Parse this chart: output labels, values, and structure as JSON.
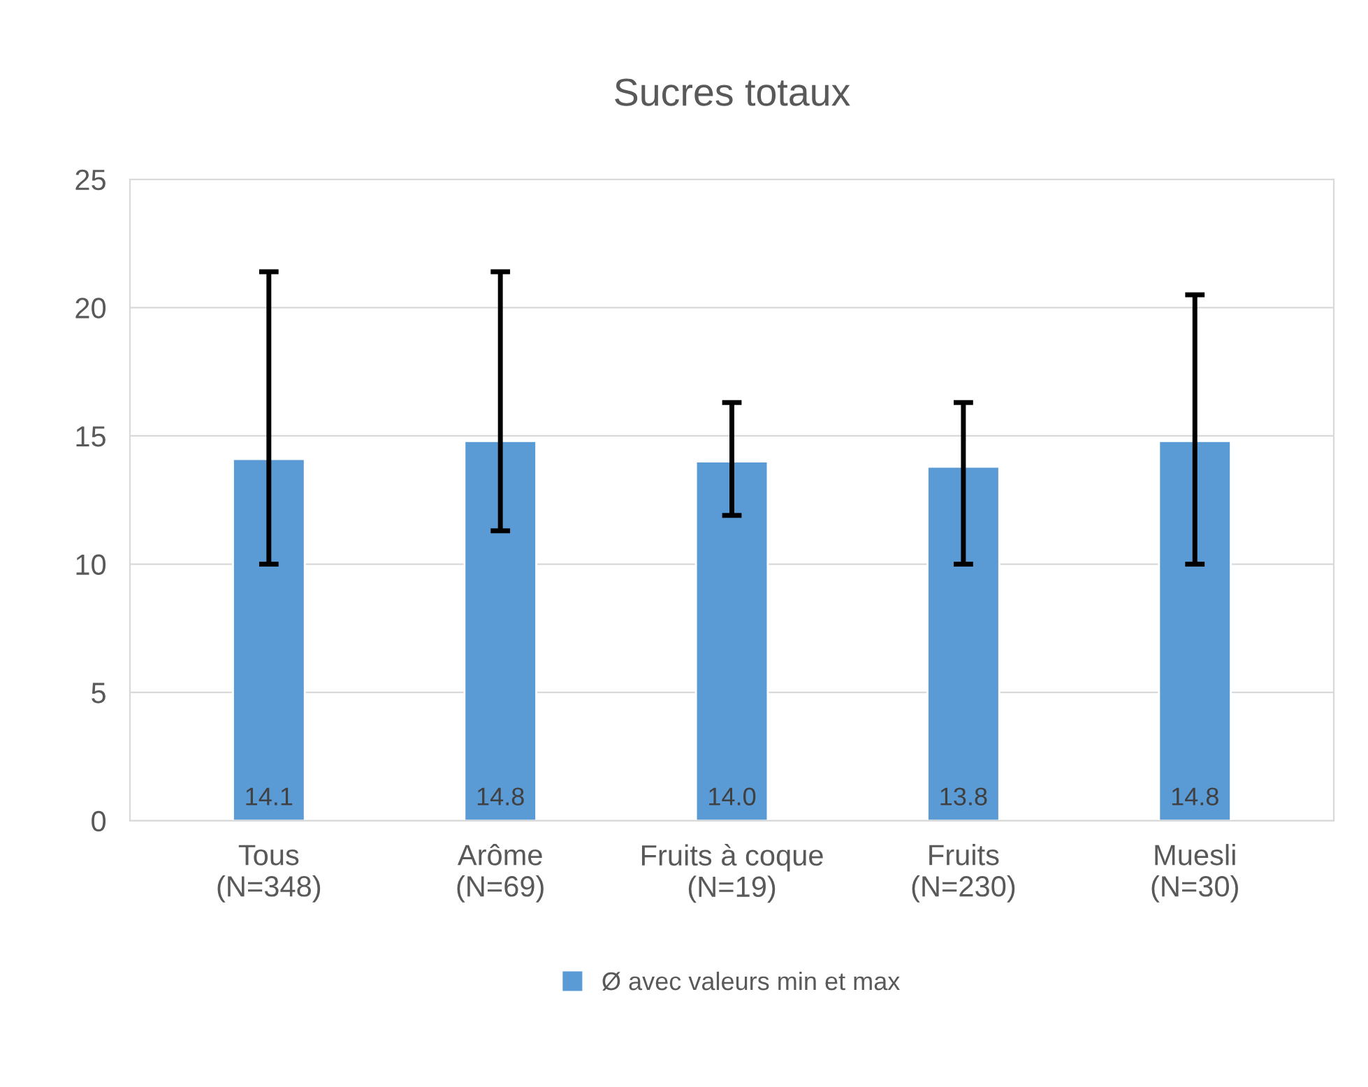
{
  "chart_data": {
    "type": "bar",
    "title": "Sucres totaux",
    "categories": [
      "Tous\n(N=348)",
      "Arôme\n(N=69)",
      "Fruits à coque\n(N=19)",
      "Fruits\n(N=230)",
      "Muesli\n(N=30)"
    ],
    "series": [
      {
        "name": "Ø avec valeurs min et max",
        "color": "#5b9bd5",
        "values": [
          14.1,
          14.8,
          14.0,
          13.8,
          14.8
        ],
        "value_labels": [
          "14.1",
          "14.8",
          "14.0",
          "13.8",
          "14.8"
        ],
        "errors": [
          [
            10.0,
            21.4
          ],
          [
            11.3,
            21.4
          ],
          [
            11.9,
            16.3
          ],
          [
            10.0,
            16.3
          ],
          [
            10.0,
            20.5
          ]
        ]
      }
    ],
    "ylim": [
      0,
      25
    ],
    "yticks": [
      0,
      5,
      10,
      15,
      20,
      25
    ],
    "grid": "y",
    "legend": "bottom"
  }
}
